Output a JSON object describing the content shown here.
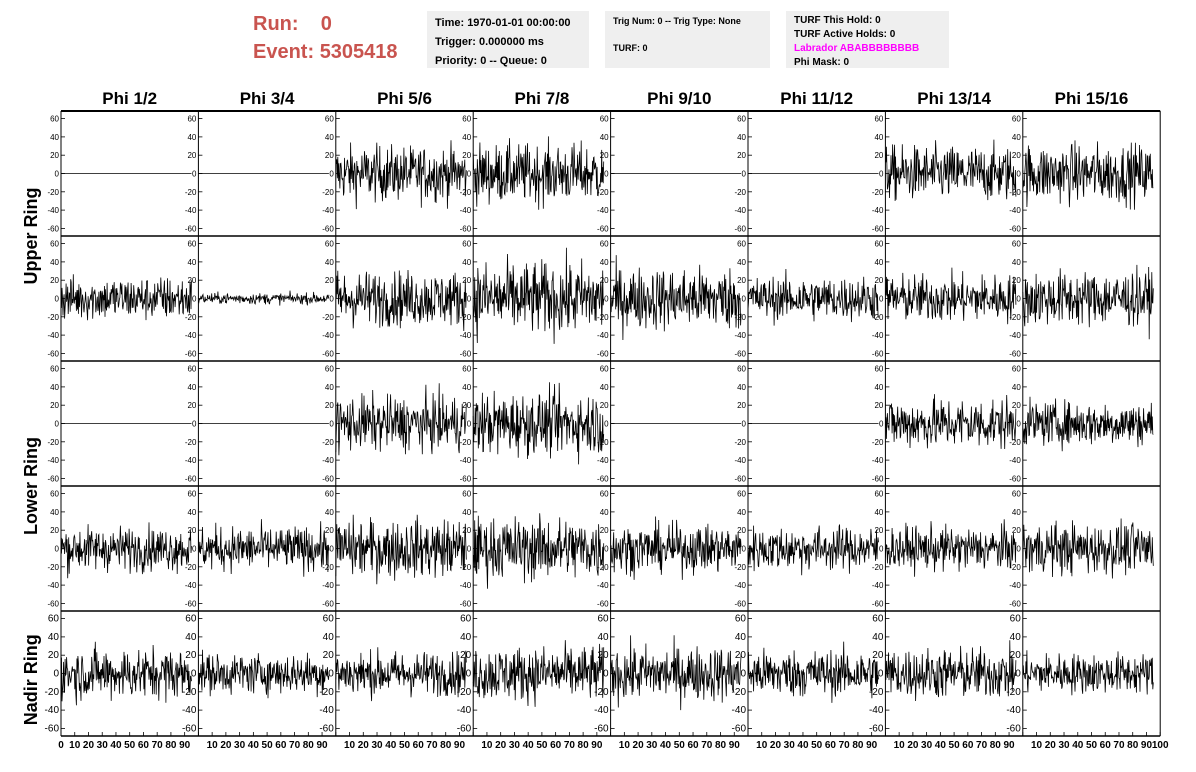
{
  "header": {
    "run_label": "Run:",
    "run_value": "0",
    "event_label": "Event:",
    "event_value": "5305418"
  },
  "info_box_1": {
    "time": "Time: 1970-01-01 00:00:00",
    "trigger": "Trigger: 0.000000 ms",
    "priority": "Priority: 0 -- Queue: 0"
  },
  "info_box_2": {
    "trig": "Trig Num: 0 -- Trig Type: None",
    "turf": "TURF: 0"
  },
  "info_box_3": {
    "this_hold": "TURF This Hold: 0",
    "active_holds": "TURF Active Holds: 0",
    "labrador": "Labrador ABABBBBBBBB",
    "phi_mask": "Phi Mask: 0"
  },
  "colors": {
    "title_red": "#c9544f",
    "labrador_magenta": "#ff00ff",
    "box_bg": "#efefef",
    "trace": "#000000"
  },
  "chart_data": {
    "type": "line",
    "columns": [
      "Phi 1/2",
      "Phi 3/4",
      "Phi 5/6",
      "Phi 7/8",
      "Phi 9/10",
      "Phi 11/12",
      "Phi 13/14",
      "Phi 15/16"
    ],
    "ring_labels": [
      "Upper Ring",
      "Lower Ring",
      "Nadir Ring"
    ],
    "rows": 5,
    "ylim": [
      -65,
      65
    ],
    "yticks": [
      -60,
      -40,
      -20,
      0,
      20,
      40,
      60
    ],
    "xlim": [
      0,
      100
    ],
    "xticks": [
      0,
      10,
      20,
      30,
      40,
      50,
      60,
      70,
      80,
      90,
      100
    ],
    "samples_per_trace": 256,
    "amplitude_rms": [
      [
        0,
        0,
        15,
        16,
        0,
        0,
        15,
        16
      ],
      [
        12,
        3,
        15,
        20,
        17,
        12,
        13,
        15
      ],
      [
        0,
        0,
        15,
        17,
        0,
        0,
        14,
        12
      ],
      [
        12,
        12,
        16,
        17,
        13,
        12,
        12,
        14
      ],
      [
        14,
        11,
        12,
        15,
        15,
        13,
        14,
        11
      ]
    ],
    "grid": false
  }
}
